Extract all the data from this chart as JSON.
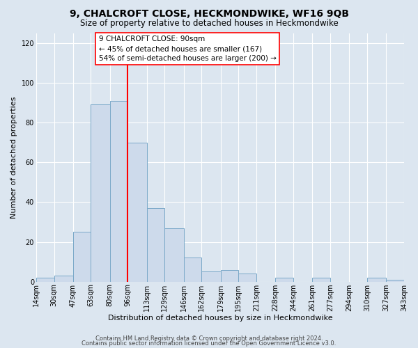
{
  "title": "9, CHALCROFT CLOSE, HECKMONDWIKE, WF16 9QB",
  "subtitle": "Size of property relative to detached houses in Heckmondwike",
  "xlabel": "Distribution of detached houses by size in Heckmondwike",
  "ylabel": "Number of detached properties",
  "bin_edges": [
    14,
    30,
    47,
    63,
    80,
    96,
    113,
    129,
    146,
    162,
    179,
    195,
    211,
    228,
    244,
    261,
    277,
    294,
    310,
    327,
    343
  ],
  "bar_heights": [
    2,
    3,
    25,
    89,
    91,
    70,
    37,
    27,
    12,
    5,
    6,
    4,
    0,
    2,
    0,
    2,
    0,
    0,
    2,
    1
  ],
  "bar_color": "#cddaeb",
  "bar_edge_color": "#7aa8c8",
  "vline_x": 96,
  "vline_color": "red",
  "ylim": [
    0,
    125
  ],
  "yticks": [
    0,
    20,
    40,
    60,
    80,
    100,
    120
  ],
  "annotation_title": "9 CHALCROFT CLOSE: 90sqm",
  "annotation_line1": "← 45% of detached houses are smaller (167)",
  "annotation_line2": "54% of semi-detached houses are larger (200) →",
  "footer_line1": "Contains HM Land Registry data © Crown copyright and database right 2024.",
  "footer_line2": "Contains public sector information licensed under the Open Government Licence v3.0.",
  "background_color": "#dce6f0",
  "grid_color": "#ffffff",
  "title_fontsize": 10,
  "subtitle_fontsize": 8.5,
  "axis_label_fontsize": 8,
  "tick_fontsize": 7,
  "footer_fontsize": 6
}
